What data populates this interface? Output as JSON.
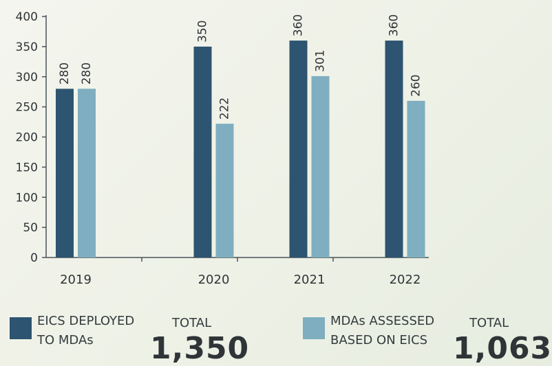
{
  "chart_data": {
    "type": "bar",
    "categories": [
      "2019",
      "2020",
      "2021",
      "2022"
    ],
    "series": [
      {
        "name": "EICS DEPLOYED TO MDAs",
        "values": [
          280,
          350,
          360,
          360
        ],
        "color": "#2d5470"
      },
      {
        "name": "MDAs ASSESSED BASED ON EICS",
        "values": [
          280,
          222,
          301,
          260
        ],
        "color": "#7eaec0"
      }
    ],
    "yticks": [
      0,
      50,
      100,
      150,
      200,
      250,
      300,
      350,
      400
    ],
    "ylim": [
      0,
      400
    ],
    "grid": false,
    "legend_position": "bottom"
  },
  "legend": [
    {
      "label": "EICS DEPLOYED\nTO MDAs",
      "total_label": "TOTAL",
      "total_value": "1,350",
      "color": "#2d5470"
    },
    {
      "label": "MDAs ASSESSED\nBASED ON EICS",
      "total_label": "TOTAL",
      "total_value": "1,063",
      "color": "#7eaec0"
    }
  ]
}
